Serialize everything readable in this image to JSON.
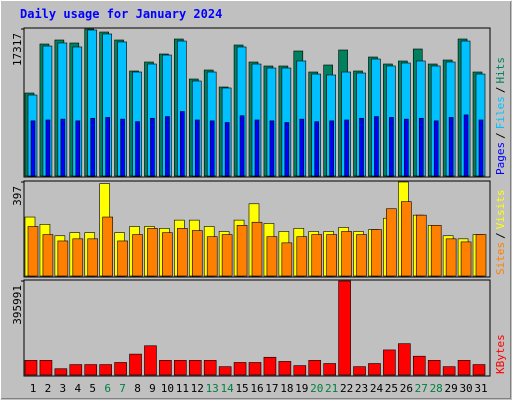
{
  "chart_data": {
    "type": "bar",
    "title": "Daily usage for January 2024",
    "categories": [
      "1",
      "2",
      "3",
      "4",
      "5",
      "6",
      "7",
      "8",
      "9",
      "10",
      "11",
      "12",
      "13",
      "14",
      "15",
      "16",
      "17",
      "18",
      "19",
      "20",
      "21",
      "22",
      "23",
      "24",
      "25",
      "26",
      "27",
      "28",
      "29",
      "30",
      "31"
    ],
    "category_colors": [
      "#000000",
      "#000000",
      "#000000",
      "#000000",
      "#000000",
      "#008040",
      "#008040",
      "#000000",
      "#000000",
      "#000000",
      "#000000",
      "#000000",
      "#008040",
      "#008040",
      "#000000",
      "#000000",
      "#000000",
      "#000000",
      "#000000",
      "#008040",
      "#008040",
      "#000000",
      "#000000",
      "#000000",
      "#000000",
      "#000000",
      "#008040",
      "#008040",
      "#000000",
      "#000000",
      "#000000"
    ],
    "legend_separator": "/",
    "panels": [
      {
        "ylim": [
          0,
          17317
        ],
        "yticks": [
          17317
        ],
        "series": [
          {
            "name": "Hits",
            "color": "#00805c",
            "values": [
              9777,
              15550,
              16021,
              15667,
              17317,
              16963,
              16021,
              12369,
              13429,
              14372,
              16139,
              11427,
              12487,
              10484,
              15432,
              13429,
              12958,
              12958,
              14725,
              12251,
              13076,
              14843,
              12369,
              14018,
              13194,
              13547,
              14961,
              13194,
              13665,
              16139,
              12251
            ]
          },
          {
            "name": "Files",
            "color": "#00c0ff",
            "values": [
              9540,
              15310,
              15670,
              15200,
              17200,
              16730,
              15790,
              12250,
              13190,
              14250,
              15900,
              11190,
              12250,
              10370,
              15200,
              13190,
              12720,
              12720,
              13550,
              12010,
              11900,
              12250,
              12130,
              13780,
              12960,
              13310,
              13550,
              12960,
              13430,
              15900,
              12010
            ]
          },
          {
            "name": "Pages",
            "color": "#0000ff",
            "values": [
              6500,
              6600,
              6700,
              6500,
              6800,
              6900,
              6700,
              6400,
              6800,
              7000,
              7600,
              6600,
              6500,
              6300,
              7100,
              6600,
              6500,
              6300,
              6700,
              6400,
              6500,
              6600,
              6800,
              7000,
              6900,
              6700,
              6800,
              6500,
              6900,
              7200,
              6600
            ]
          }
        ]
      },
      {
        "ylim": [
          0,
          397
        ],
        "yticks": [
          397
        ],
        "series": [
          {
            "name": "Visits",
            "color": "#ffff00",
            "values": [
              249,
              218,
              170,
              183,
              183,
              390,
              183,
              209,
              209,
              201,
              236,
              236,
              209,
              188,
              236,
              305,
              222,
              188,
              201,
              188,
              188,
              205,
              188,
              196,
              244,
              397,
              257,
              214,
              170,
              157,
              175
            ]
          },
          {
            "name": "Sites",
            "color": "#ff8000",
            "values": [
              209,
              175,
              148,
              157,
              157,
              249,
              148,
              175,
              201,
              183,
              201,
              192,
              166,
              175,
              214,
              227,
              166,
              140,
              166,
              175,
              175,
              188,
              175,
              196,
              284,
              314,
              257,
              214,
              157,
              144,
              175
            ]
          }
        ]
      },
      {
        "ylim": [
          0,
          395991
        ],
        "yticks": [
          395991
        ],
        "series": [
          {
            "name": "KBytes",
            "color": "#ff0000",
            "values": [
              61600,
              61600,
              26400,
              44000,
              44000,
              44000,
              52800,
              88000,
              123200,
              61600,
              61600,
              61600,
              61600,
              35200,
              52800,
              52800,
              74800,
              57200,
              39600,
              61600,
              48400,
              395991,
              35200,
              48400,
              105600,
              132000,
              79200,
              61600,
              35200,
              61600,
              44000
            ]
          }
        ]
      }
    ]
  }
}
